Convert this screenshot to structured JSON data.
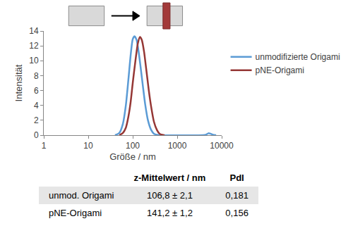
{
  "chart_data": {
    "type": "line",
    "x_label": "Größe / nm",
    "y_label": "Intensität",
    "log": "x",
    "grid": false,
    "legend": "right",
    "xlim": [
      1,
      10000
    ],
    "xticks": [
      1,
      10,
      100,
      1000,
      10000
    ],
    "ylim": [
      0,
      14
    ],
    "yticks": [
      0,
      2,
      4,
      6,
      8,
      10,
      12,
      14
    ],
    "series": [
      {
        "name": "unmodifizierte Origami",
        "color": "#5b9bd5",
        "x": [
          40,
          50,
          60,
          70,
          80,
          90,
          100,
          110,
          122,
          135,
          150,
          170,
          190,
          220,
          260,
          300,
          350,
          400,
          3800,
          4400,
          5000,
          5600,
          6400,
          7500
        ],
        "values": [
          0,
          0.3,
          1.5,
          4,
          7.5,
          10.8,
          12.9,
          13.3,
          12.8,
          11.3,
          9.2,
          6.5,
          4.2,
          2,
          0.7,
          0.2,
          0.05,
          0,
          0,
          0.05,
          0.25,
          0.2,
          0.05,
          0
        ]
      },
      {
        "name": "pNE-Origami",
        "color": "#953735",
        "x": [
          50,
          60,
          70,
          80,
          90,
          100,
          115,
          130,
          145,
          160,
          180,
          200,
          230,
          260,
          300,
          350,
          400,
          460,
          520
        ],
        "values": [
          0,
          0.3,
          1,
          2.5,
          4.5,
          7,
          10,
          12.3,
          13.2,
          12.8,
          11.2,
          9,
          6,
          3.8,
          1.8,
          0.7,
          0.2,
          0.05,
          0
        ]
      }
    ]
  },
  "table": {
    "columns": [
      "z-Mittelwert / nm",
      "PdI"
    ],
    "rows": [
      {
        "label": "unmod. Origami",
        "cells": [
          "106,8 ± 2,1",
          "0,181"
        ]
      },
      {
        "label": "pNE-Origami",
        "cells": [
          "141,2 ± 1,2",
          "0,156"
        ]
      }
    ]
  }
}
